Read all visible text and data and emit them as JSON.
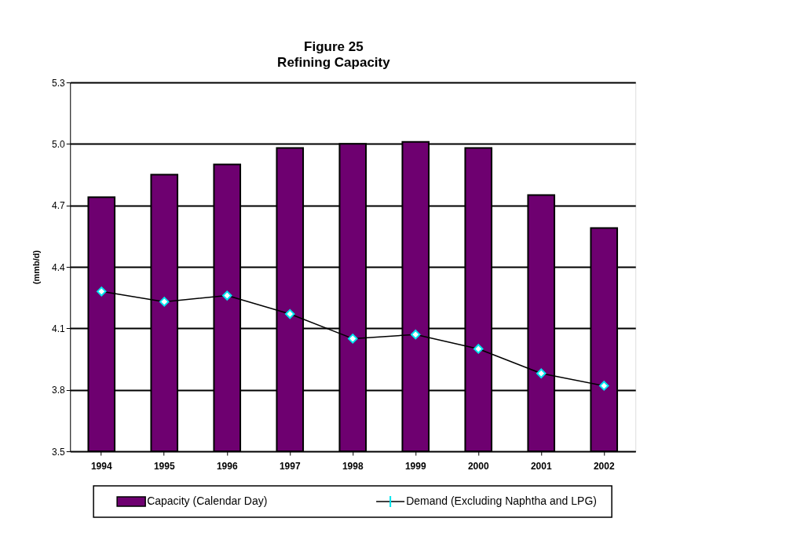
{
  "chart_data": {
    "type": "bar",
    "title": "Figure 25",
    "subtitle": "Refining Capacity",
    "ylabel": "(mmb/d)",
    "categories": [
      "1994",
      "1995",
      "1996",
      "1997",
      "1998",
      "1999",
      "2000",
      "2001",
      "2002"
    ],
    "series": [
      {
        "name": "Capacity (Calendar Day)",
        "color": "#6e0070",
        "values": [
          4.74,
          4.85,
          4.9,
          4.98,
          5.0,
          5.01,
          4.98,
          4.75,
          4.59
        ]
      },
      {
        "name": "Demand (Excluding Naphtha and LPG)",
        "type": "line",
        "color": "#000000",
        "marker": "diamond",
        "values": [
          4.28,
          4.23,
          4.26,
          4.17,
          4.05,
          4.07,
          4.0,
          3.88,
          3.82
        ]
      }
    ],
    "ylim": [
      3.5,
      5.3
    ],
    "yticks": [
      3.5,
      3.8,
      4.1,
      4.4,
      4.7,
      {
        "value": 5,
        "label": "5.0"
      },
      5.3
    ],
    "grid": "y",
    "legend": "bottom"
  }
}
